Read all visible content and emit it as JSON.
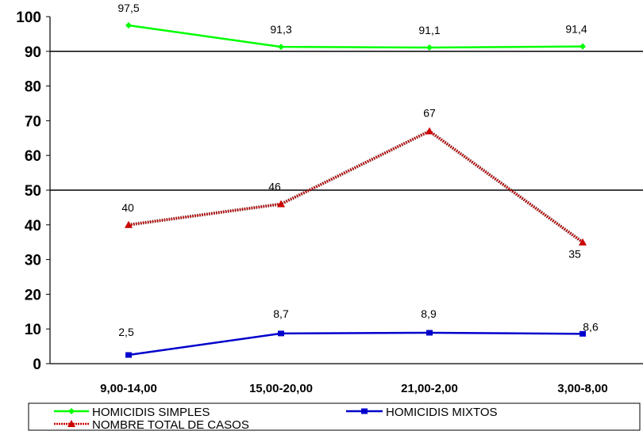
{
  "chart_data": {
    "type": "line",
    "title": "",
    "xlabel": "",
    "ylabel": "",
    "categories": [
      "9,00-14,00",
      "15,00-20,00",
      "21,00-2,00",
      "3,00-8,00"
    ],
    "ylim": [
      0,
      100
    ],
    "yticks": [
      0,
      10,
      20,
      30,
      40,
      50,
      60,
      70,
      80,
      90,
      100
    ],
    "grid": "major gridlines at 50, 90",
    "legend_position": "bottom",
    "series": [
      {
        "name": "HOMICIDIS SIMPLES",
        "color": "#00ff00",
        "marker": "diamond",
        "values": [
          97.5,
          91.3,
          91.1,
          91.4
        ],
        "labels": [
          "97,5",
          "91,3",
          "91,1",
          "91,4"
        ]
      },
      {
        "name": "HOMICIDIS MIXTOS",
        "color": "#0000cc",
        "marker": "square",
        "values": [
          2.5,
          8.7,
          8.9,
          8.6
        ],
        "labels": [
          "2,5",
          "8,7",
          "8,9",
          "8,6"
        ]
      },
      {
        "name": "NOMBRE TOTAL DE CASOS",
        "color": "#cc0000",
        "marker": "triangle",
        "values": [
          40,
          46,
          67,
          35
        ],
        "labels": [
          "40",
          "46",
          "67",
          "35"
        ]
      }
    ]
  }
}
